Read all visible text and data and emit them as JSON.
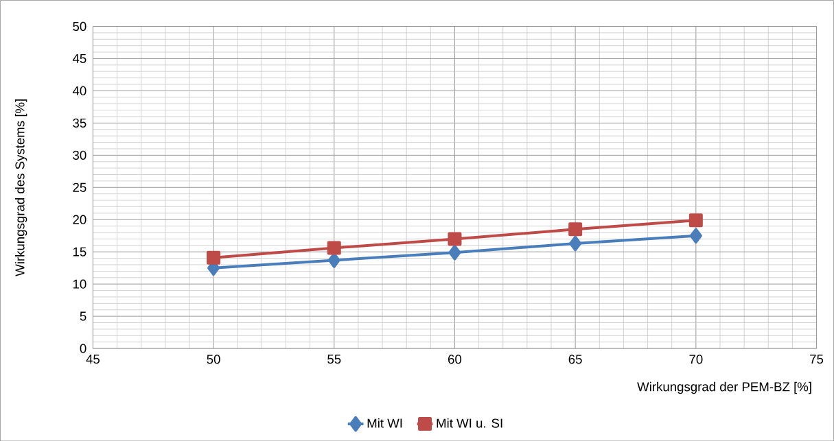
{
  "chart_data": {
    "type": "line",
    "xlabel": "Wirkungsgrad der PEM-BZ [%]",
    "ylabel": "Wirkungsgrad des Systems [%]",
    "x": [
      50,
      55,
      60,
      65,
      70
    ],
    "series": [
      {
        "name": "Mit WI",
        "color": "#4a7ebb",
        "marker": "diamond",
        "values": [
          12.5,
          13.7,
          14.9,
          16.3,
          17.5
        ]
      },
      {
        "name": "Mit WI u. SI",
        "color": "#be4b48",
        "marker": "square",
        "values": [
          14.1,
          15.6,
          17.0,
          18.5,
          19.9
        ]
      }
    ],
    "xlim": [
      45,
      75
    ],
    "xticks": [
      45,
      50,
      55,
      60,
      65,
      70,
      75
    ],
    "ylim": [
      0,
      50
    ],
    "yticks": [
      0,
      5,
      10,
      15,
      20,
      25,
      30,
      35,
      40,
      45,
      50
    ],
    "grid": true,
    "legend": "bottom",
    "line_style": "solid"
  }
}
